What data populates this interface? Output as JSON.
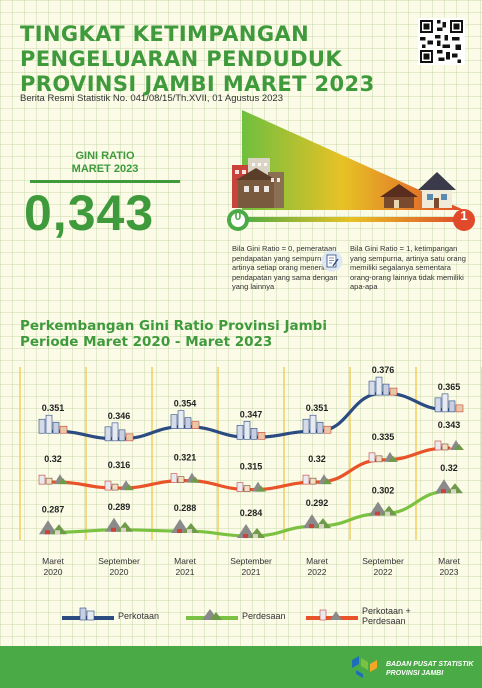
{
  "title_lines": [
    "TINGKAT KETIMPANGAN",
    "PENGELUARAN PENDUDUK",
    "PROVINSI JAMBI MARET 2023"
  ],
  "subtitle": "Berita Resmi Statistik No. 041/08/15/Th.XVII, 01 Agustus 2023",
  "gini": {
    "label_line1": "GINI RATIO",
    "label_line2": "MARET 2023",
    "value": "0,343"
  },
  "scale": {
    "zero_label": "0",
    "one_label": "1",
    "note_zero": "Bila Gini Ratio = 0, pemerataan pendapatan yang sempurna, artinya setiap orang menerima pendapatan yang sama dengan yang lainnya",
    "note_one": "Bila Gini Ratio = 1, ketimpangan yang sempurna, artinya satu orang memiliki segalanya sementara orang-orang lainnya tidak memiliki apa-apa"
  },
  "chart_heading": [
    "Perkembangan Gini Ratio Provinsi Jambi",
    "Periode Maret 2020 - Maret 2023"
  ],
  "colors": {
    "perkotaan": "#2b4c80",
    "perdesaan": "#7cc242",
    "gabungan": "#e8542a",
    "title_green": "#3f9a3c",
    "footer_green": "#4aaa45"
  },
  "chart_data": {
    "type": "line",
    "categories": [
      [
        "Maret",
        "2020"
      ],
      [
        "September",
        "2020"
      ],
      [
        "Maret",
        "2021"
      ],
      [
        "September",
        "2021"
      ],
      [
        "Maret",
        "2022"
      ],
      [
        "September",
        "2022"
      ],
      [
        "Maret",
        "2023"
      ]
    ],
    "series": [
      {
        "name": "Perkotaan",
        "key": "perkotaan",
        "values": [
          0.351,
          0.346,
          0.354,
          0.347,
          0.351,
          0.376,
          0.365
        ],
        "labels": [
          "0.351",
          "0.346",
          "0.354",
          "0.347",
          "0.351",
          "0.376",
          "0.365"
        ]
      },
      {
        "name": "Perkotaan + Perdesaan",
        "key": "gabungan",
        "values": [
          0.32,
          0.316,
          0.321,
          0.315,
          0.32,
          0.335,
          0.343
        ],
        "labels": [
          "0.32",
          "0.316",
          "0.321",
          "0.315",
          "0.32",
          "0.335",
          "0.343"
        ]
      },
      {
        "name": "Perdesaan",
        "key": "perdesaan",
        "values": [
          0.287,
          0.289,
          0.288,
          0.284,
          0.292,
          0.302,
          0.32
        ],
        "labels": [
          "0.287",
          "0.289",
          "0.288",
          "0.284",
          "0.292",
          "0.302",
          "0.32"
        ]
      }
    ],
    "grid": true
  },
  "legend": {
    "perkotaan": "Perkotaan",
    "perdesaan": "Perdesaan",
    "gabungan_line1": "Perkotaan +",
    "gabungan_line2": "Perdesaan"
  },
  "footer": {
    "line1": "BADAN PUSAT STATISTIK",
    "line2": "PROVINSI JAMBI"
  }
}
